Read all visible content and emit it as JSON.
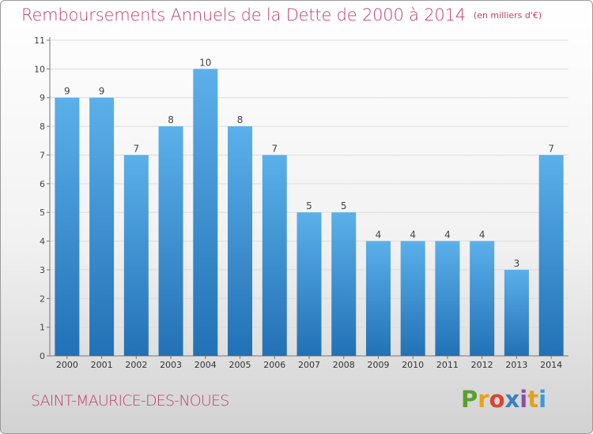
{
  "title": "Remboursements Annuels de la Dette de 2000 à 2014",
  "unit": "(en milliers d'€)",
  "commune": "SAINT-MAURICE-DES-NOUES",
  "logo": {
    "text": "Proxiti",
    "colors": [
      "#5aa02c",
      "#e8a11c",
      "#d9442f",
      "#3a7fc2",
      "#8d4fa6",
      "#e0a020",
      "#3a9ad9"
    ]
  },
  "colors": {
    "bar_top": "#5bb0ea",
    "bar_bottom": "#2271b6",
    "title": "#c13f6c"
  },
  "chart_data": {
    "type": "bar",
    "categories": [
      "2000",
      "2001",
      "2002",
      "2003",
      "2004",
      "2005",
      "2006",
      "2007",
      "2008",
      "2009",
      "2010",
      "2011",
      "2012",
      "2013",
      "2014"
    ],
    "values": [
      9,
      9,
      7,
      8,
      10,
      8,
      7,
      5,
      5,
      4,
      4,
      4,
      4,
      3,
      7
    ],
    "yticks": [
      "0",
      "1",
      "2",
      "3",
      "4",
      "5",
      "6",
      "7",
      "8",
      "9",
      "10",
      "11"
    ],
    "ylim": [
      0,
      11
    ],
    "grid": true,
    "data_labels": true
  }
}
